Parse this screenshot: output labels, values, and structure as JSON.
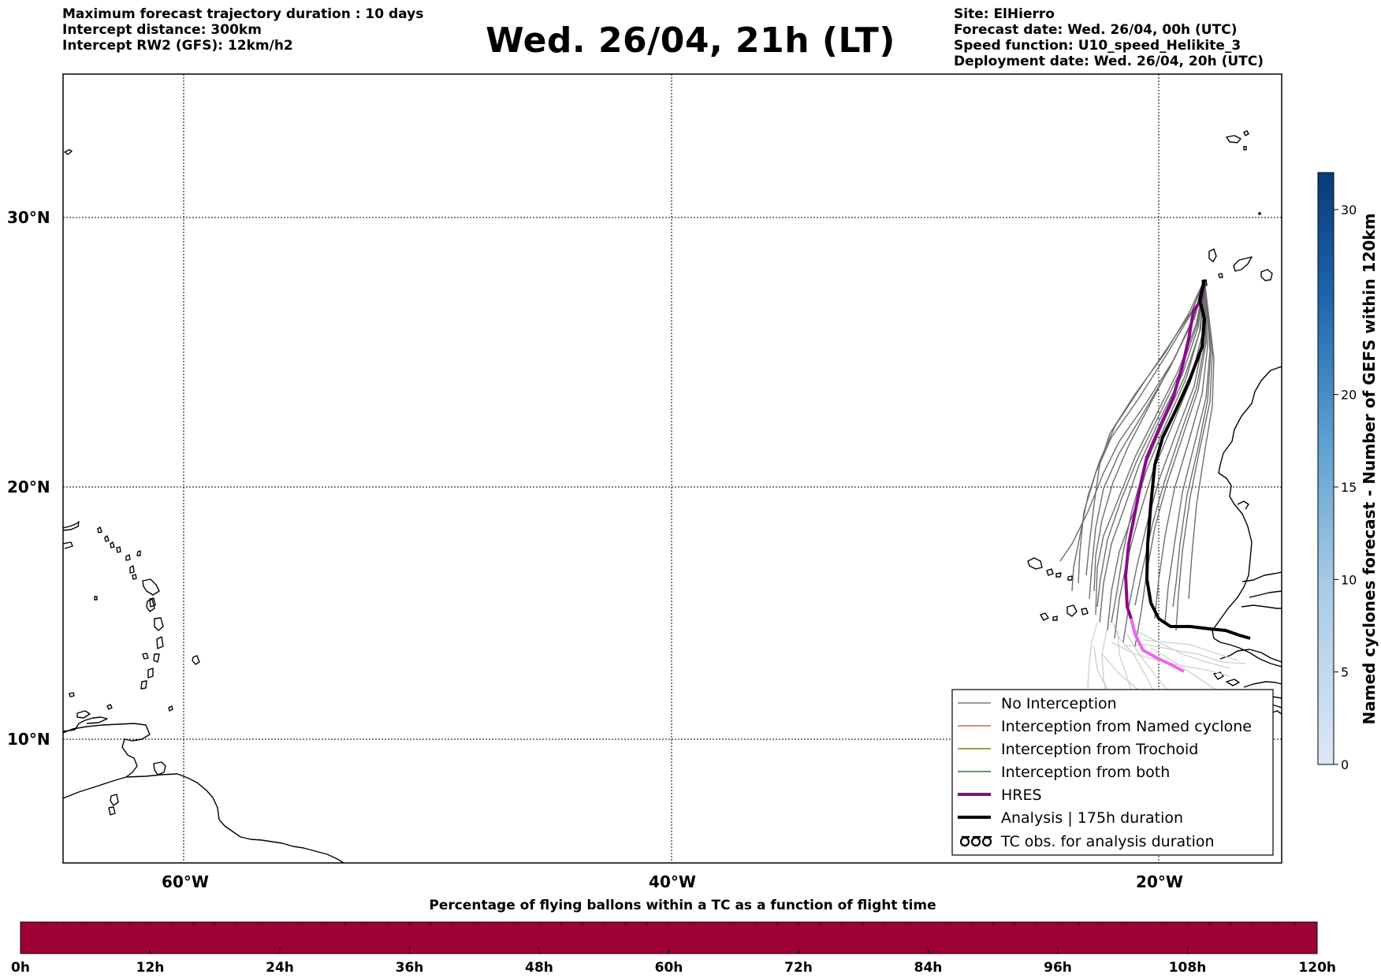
{
  "header": {
    "left_lines": [
      "Maximum forecast trajectory duration : 10 days",
      "Intercept distance: 300km",
      "Intercept RW2 (GFS):  12km/h2"
    ],
    "title": "Wed. 26/04, 21h (LT)",
    "right_lines": [
      "Site: ElHierro",
      "Forecast date: Wed. 26/04, 00h (UTC)",
      "Speed function: U10_speed_Helikite_3",
      "Deployment date: Wed. 26/04, 20h (UTC)"
    ]
  },
  "map": {
    "lon_ticks": [
      "60°W",
      "40°W",
      "20°W"
    ],
    "lat_ticks": [
      "30°N",
      "20°N",
      "10°N"
    ],
    "gridlines": "dotted",
    "extent": {
      "lon": [
        -65,
        -15
      ],
      "lat": [
        5.3,
        34.6
      ]
    }
  },
  "legend": {
    "position": "lower-right",
    "entries": [
      {
        "label": "No Interception",
        "color": "#7a7a7a",
        "style": "thin"
      },
      {
        "label": "Interception from Named cyclone",
        "color": "#e8661f",
        "style": "thin"
      },
      {
        "label": "Interception from Trochoid",
        "color": "#7d7d1c",
        "style": "thin"
      },
      {
        "label": "Interception from both",
        "color": "#2a7a2a",
        "style": "thin"
      },
      {
        "label": "HRES",
        "color": "#8a0a8a",
        "style": "thick"
      },
      {
        "label": "Analysis | 175h duration",
        "color": "#000000",
        "style": "thick"
      },
      {
        "label": "TC obs. for analysis duration",
        "color": "#000000",
        "style": "symbol"
      }
    ]
  },
  "colorbar": {
    "label": "Named cyclones forecast - Number of GEFS within 120km",
    "ticks": [
      {
        "value": 0,
        "label": "0"
      },
      {
        "value": 5,
        "label": "5"
      },
      {
        "value": 10,
        "label": "10"
      },
      {
        "value": 15,
        "label": "15"
      },
      {
        "value": 20,
        "label": "20"
      },
      {
        "value": 30,
        "label": "30"
      }
    ],
    "max": 32,
    "color_low": "#dbe8f6",
    "color_high": "#0b3a78"
  },
  "timebar": {
    "title": "Percentage of flying ballons within a TC as a function of flight time",
    "ticks": [
      "0h",
      "12h",
      "24h",
      "36h",
      "48h",
      "60h",
      "72h",
      "84h",
      "96h",
      "108h",
      "120h"
    ],
    "fill_color": "#9e0038"
  }
}
